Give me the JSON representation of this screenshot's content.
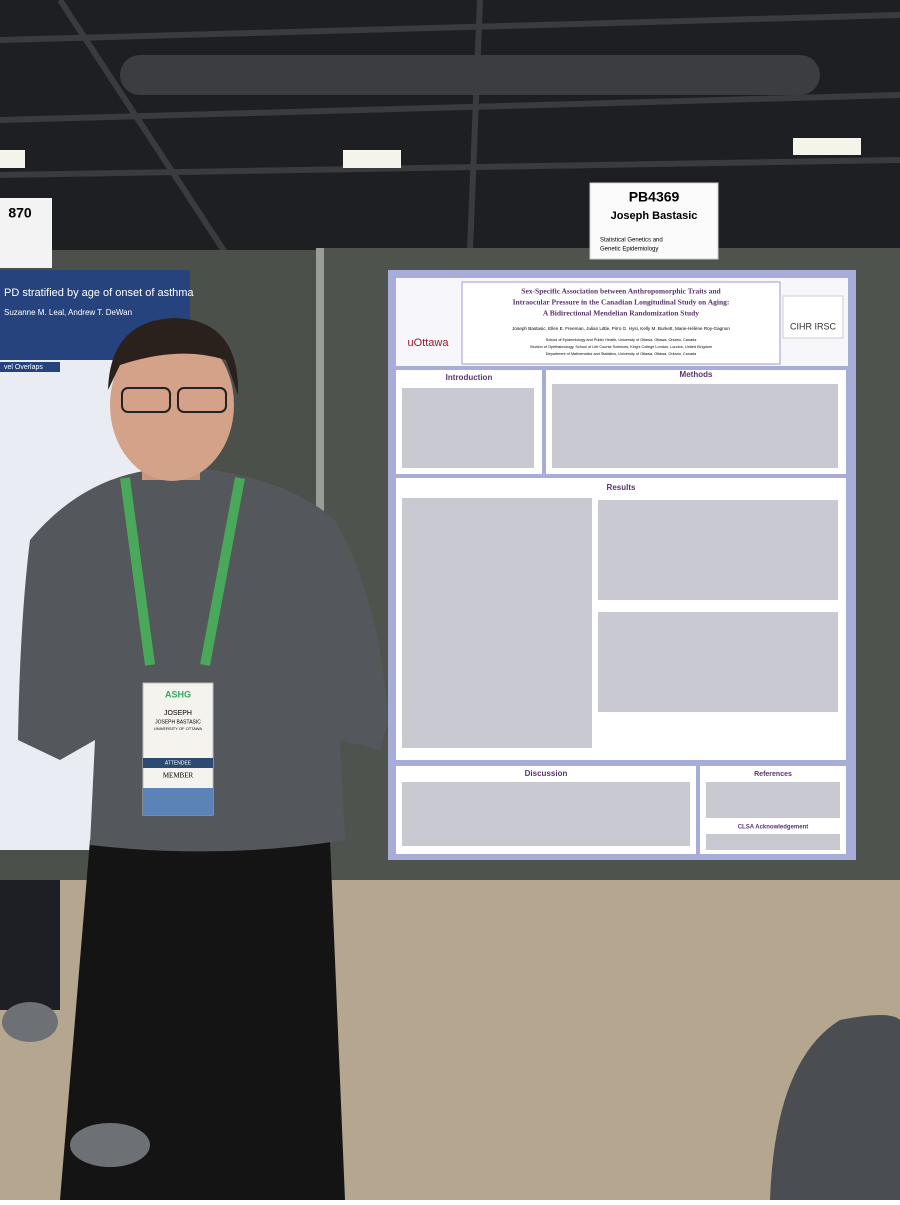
{
  "left_sign": {
    "number": "870"
  },
  "left_poster": {
    "title": "PD stratified by age of onset of asthma",
    "authors": "Suzanne M. Leal, Andrew T. DeWan",
    "section": "vel Overlaps"
  },
  "sign": {
    "number": "PB4369",
    "name": "Joseph Bastasic",
    "subtitle_lines": [
      "Statistical Genetics and",
      "Genetic Epidemiology"
    ]
  },
  "poster": {
    "title_lines": [
      "Sex-Specific Association between Anthropomorphic Traits and",
      "Intraocular Pressure in the Canadian Longitudinal Study on Aging:",
      "A Bidirectional Mendelian Randomization Study"
    ],
    "authors": "Joseph Bastasic, Ellen E. Freeman, Julian Little, Pirro G. Hysi, Kelly M. Burkett, Marie-Hélène Roy-Gagnon",
    "affiliations": [
      "School of Epidemiology and Public Health, University of Ottawa, Ottawa, Ontario, Canada",
      "Section of Ophthalmology, School of Life Course Sciences, King's College London, London, United Kingdom",
      "Department of Mathematics and Statistics, University of Ottawa, Ottawa, Ontario, Canada"
    ],
    "logo_left": "uOttawa",
    "logo_right": "CIHR IRSC",
    "sections": [
      "Introduction",
      "Methods",
      "Results",
      "Discussion",
      "References",
      "CLSA Acknowledgement"
    ]
  },
  "badge": {
    "org": "ASHG",
    "first_name": "JOSEPH",
    "full_name": "JOSEPH BASTASIC",
    "affiliation": "UNIVERSITY OF OTTAWA",
    "role": "ATTENDEE",
    "member": "MEMBER"
  }
}
